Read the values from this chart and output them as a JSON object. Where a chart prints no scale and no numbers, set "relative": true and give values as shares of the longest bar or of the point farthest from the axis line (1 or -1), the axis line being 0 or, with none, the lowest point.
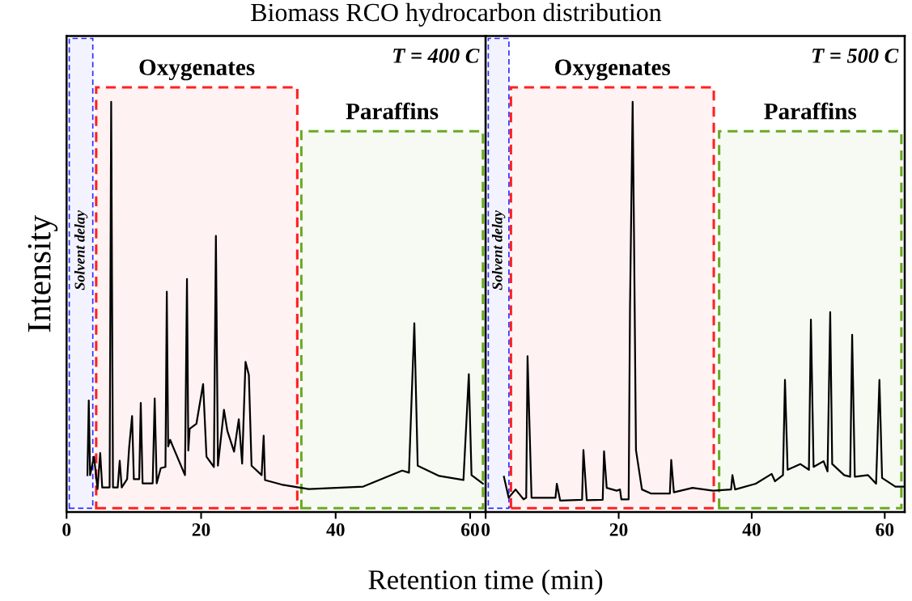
{
  "chart_data": [
    {
      "type": "line",
      "title": "Biomass RCO hydrocarbon distribution",
      "xlabel": "Retention time (min)",
      "ylabel": "Intensity",
      "relative": true,
      "tick_labels": "x",
      "xlim": [
        0,
        62.3
      ],
      "xticks": [
        0,
        20,
        40,
        60
      ],
      "grid": false,
      "legend": false,
      "marker": "none",
      "line_style": "solid",
      "annotations": [
        "T = 400 C"
      ],
      "bands": [
        {
          "axis": "x",
          "from": 0.4,
          "to": 3.9,
          "label": "Solvent delay",
          "color": "#2b2bff"
        },
        {
          "axis": "x",
          "from": 4.4,
          "to": 34.3,
          "label": "Oxygenates",
          "color": "#ff2020"
        },
        {
          "axis": "x",
          "from": 34.9,
          "to": 61.9,
          "label": "Paraffins",
          "color": "#6aaa20"
        }
      ],
      "series": [
        {
          "color": "#000000",
          "x": [
            3.1,
            3.3,
            3.5,
            4.08,
            4.6,
            5.0,
            5.3,
            6.4,
            6.63,
            6.9,
            7.6,
            7.9,
            8.2,
            9.0,
            9.3,
            9.74,
            10.0,
            10.8,
            11.03,
            11.3,
            12.8,
            13.1,
            13.4,
            14.0,
            14.7,
            14.9,
            15.1,
            15.4,
            15.8,
            17.6,
            17.9,
            18.1,
            18.3,
            19.3,
            20.3,
            20.8,
            21.9,
            22.2,
            22.5,
            23.4,
            23.9,
            24.9,
            25.6,
            26.1,
            26.6,
            27.1,
            27.5,
            29.0,
            29.3,
            29.5,
            31.96,
            36.0,
            44.1,
            49.9,
            50.9,
            51.7,
            52.2,
            55.4,
            59.0,
            59.8,
            60.2,
            61.9
          ],
          "values": [
            0.09,
            0.272,
            0.09,
            0.135,
            0.056,
            0.144,
            0.06,
            0.06,
            1.0,
            0.06,
            0.06,
            0.125,
            0.06,
            0.08,
            0.157,
            0.234,
            0.08,
            0.08,
            0.266,
            0.07,
            0.07,
            0.277,
            0.07,
            0.107,
            0.11,
            0.537,
            0.16,
            0.176,
            0.16,
            0.09,
            0.568,
            0.15,
            0.203,
            0.215,
            0.312,
            0.135,
            0.11,
            0.673,
            0.113,
            0.249,
            0.198,
            0.147,
            0.226,
            0.118,
            0.366,
            0.334,
            0.113,
            0.09,
            0.186,
            0.078,
            0.067,
            0.056,
            0.062,
            0.101,
            0.096,
            0.46,
            0.113,
            0.088,
            0.078,
            0.336,
            0.09,
            0.069
          ]
        }
      ]
    },
    {
      "type": "line",
      "relative": true,
      "tick_labels": "x",
      "xlim": [
        0,
        63.0
      ],
      "xticks": [
        0,
        20,
        40,
        60
      ],
      "grid": false,
      "legend": false,
      "marker": "none",
      "line_style": "solid",
      "annotations": [
        "T = 500 C"
      ],
      "bands": [
        {
          "axis": "x",
          "from": 0.4,
          "to": 3.5,
          "label": "Solvent delay",
          "color": "#2b2bff"
        },
        {
          "axis": "x",
          "from": 3.8,
          "to": 34.3,
          "label": "Oxygenates",
          "color": "#ff2020"
        },
        {
          "axis": "x",
          "from": 35.1,
          "to": 62.5,
          "label": "Paraffins",
          "color": "#6aaa20"
        }
      ],
      "series": [
        {
          "color": "#000000",
          "x": [
            2.75,
            3.46,
            4.5,
            5.7,
            6.1,
            6.3,
            6.9,
            10.5,
            10.7,
            11.2,
            14.5,
            14.7,
            15.2,
            17.6,
            17.8,
            18.2,
            19.7,
            20.2,
            20.4,
            21.5,
            21.7,
            22.1,
            22.3,
            22.6,
            23.5,
            24.9,
            27.7,
            27.9,
            28.3,
            31.1,
            34.2,
            36.9,
            37.1,
            37.5,
            40.6,
            43.0,
            43.5,
            44.7,
            45.0,
            45.4,
            47.3,
            48.6,
            48.9,
            49.3,
            50.8,
            51.4,
            51.8,
            52.1,
            53.9,
            54.8,
            55.1,
            55.5,
            57.5,
            58.7,
            59.2,
            59.6,
            61.6,
            63.0
          ],
          "values": [
            0.086,
            0.035,
            0.055,
            0.031,
            0.035,
            0.38,
            0.035,
            0.035,
            0.069,
            0.028,
            0.03,
            0.151,
            0.029,
            0.03,
            0.148,
            0.059,
            0.052,
            0.055,
            0.031,
            0.031,
            0.493,
            1.0,
            0.685,
            0.151,
            0.055,
            0.045,
            0.045,
            0.127,
            0.048,
            0.059,
            0.052,
            0.055,
            0.09,
            0.055,
            0.069,
            0.093,
            0.075,
            0.09,
            0.322,
            0.103,
            0.117,
            0.103,
            0.469,
            0.11,
            0.124,
            0.099,
            0.487,
            0.117,
            0.09,
            0.086,
            0.432,
            0.086,
            0.09,
            0.069,
            0.322,
            0.083,
            0.062,
            0.062
          ]
        }
      ]
    }
  ]
}
